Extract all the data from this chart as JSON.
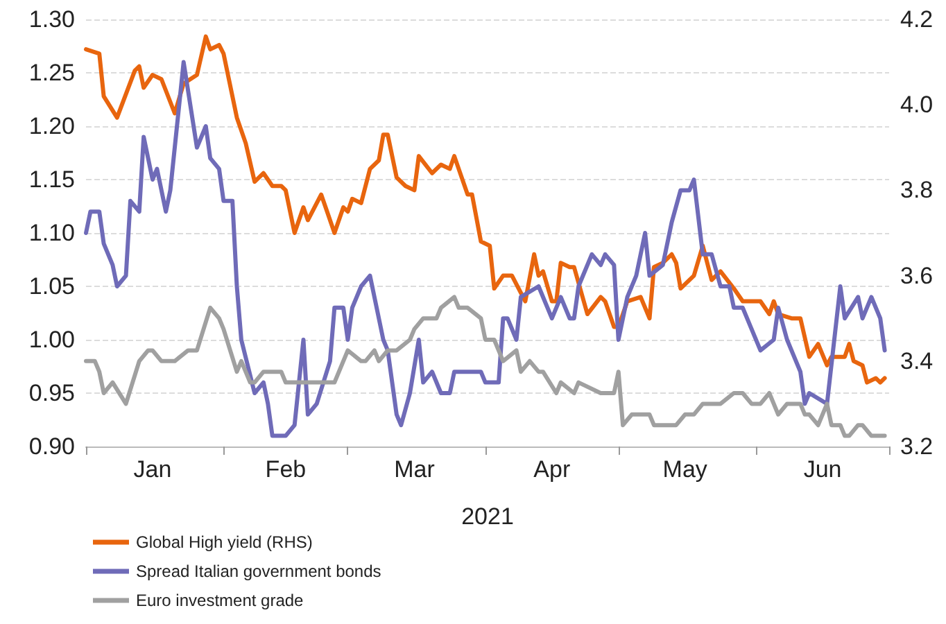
{
  "chart_data": {
    "type": "line",
    "xlabel": "2021",
    "xlim": [
      "2021-01-01",
      "2021-07-01"
    ],
    "xticks": [
      {
        "value": "2021-01-01",
        "label": null
      },
      {
        "value": "2021-01-16",
        "label": "Jan"
      },
      {
        "value": "2021-02-01",
        "label": null
      },
      {
        "value": "2021-02-15",
        "label": "Feb"
      },
      {
        "value": "2021-03-01",
        "label": null
      },
      {
        "value": "2021-03-16",
        "label": "Mar"
      },
      {
        "value": "2021-04-01",
        "label": null
      },
      {
        "value": "2021-04-16",
        "label": "Apr"
      },
      {
        "value": "2021-05-01",
        "label": null
      },
      {
        "value": "2021-05-16",
        "label": "May"
      },
      {
        "value": "2021-06-01",
        "label": null
      },
      {
        "value": "2021-06-16",
        "label": "Jun"
      },
      {
        "value": "2021-07-01",
        "label": null
      }
    ],
    "ylim": [
      0.9,
      1.3
    ],
    "yticks": [
      {
        "value": 0.9,
        "label": "0.90"
      },
      {
        "value": 0.95,
        "label": "0.95"
      },
      {
        "value": 1.0,
        "label": "1.00"
      },
      {
        "value": 1.05,
        "label": "1.05"
      },
      {
        "value": 1.1,
        "label": "1.10"
      },
      {
        "value": 1.15,
        "label": "1.15"
      },
      {
        "value": 1.2,
        "label": "1.20"
      },
      {
        "value": 1.25,
        "label": "1.25"
      },
      {
        "value": 1.3,
        "label": "1.30"
      }
    ],
    "y2lim": [
      3.2,
      4.2
    ],
    "y2ticks": [
      3.2,
      3.4,
      3.6,
      3.8,
      {
        "value": 4.0,
        "label": "4.0"
      },
      4.2
    ],
    "grid": "y",
    "legend": "bottom left",
    "marker": "none",
    "line_style": "solid",
    "series": [
      {
        "name": "Global High yield (RHS)",
        "color": "#e8650e",
        "axis": "y2",
        "x": [
          "2021-01-01",
          "2021-01-04",
          "2021-01-05",
          "2021-01-08",
          "2021-01-12",
          "2021-01-13",
          "2021-01-14",
          "2021-01-16",
          "2021-01-18",
          "2021-01-21",
          "2021-01-23",
          "2021-01-26",
          "2021-01-28",
          "2021-01-29",
          "2021-01-31",
          "2021-02-01",
          "2021-02-04",
          "2021-02-06",
          "2021-02-08",
          "2021-02-10",
          "2021-02-12",
          "2021-02-14",
          "2021-02-15",
          "2021-02-17",
          "2021-02-19",
          "2021-02-20",
          "2021-02-23",
          "2021-02-26",
          "2021-02-28",
          "2021-03-01",
          "2021-03-02",
          "2021-03-04",
          "2021-03-06",
          "2021-03-08",
          "2021-03-09",
          "2021-03-10",
          "2021-03-12",
          "2021-03-14",
          "2021-03-16",
          "2021-03-17",
          "2021-03-20",
          "2021-03-22",
          "2021-03-24",
          "2021-03-25",
          "2021-03-28",
          "2021-03-29",
          "2021-03-31",
          "2021-04-02",
          "2021-04-03",
          "2021-04-05",
          "2021-04-07",
          "2021-04-10",
          "2021-04-12",
          "2021-04-13",
          "2021-04-14",
          "2021-04-16",
          "2021-04-17",
          "2021-04-18",
          "2021-04-20",
          "2021-04-21",
          "2021-04-24",
          "2021-04-27",
          "2021-04-28",
          "2021-04-30",
          "2021-05-01",
          "2021-05-03",
          "2021-05-06",
          "2021-05-08",
          "2021-05-09",
          "2021-05-11",
          "2021-05-13",
          "2021-05-14",
          "2021-05-15",
          "2021-05-18",
          "2021-05-20",
          "2021-05-22",
          "2021-05-24",
          "2021-05-27",
          "2021-05-29",
          "2021-06-02",
          "2021-06-04",
          "2021-06-05",
          "2021-06-06",
          "2021-06-09",
          "2021-06-11",
          "2021-06-13",
          "2021-06-15",
          "2021-06-17",
          "2021-06-18",
          "2021-06-21",
          "2021-06-22",
          "2021-06-23",
          "2021-06-25",
          "2021-06-26",
          "2021-06-28",
          "2021-06-29",
          "2021-06-30"
        ],
        "values": [
          4.13,
          4.12,
          4.02,
          3.97,
          4.08,
          4.09,
          4.04,
          4.07,
          4.06,
          3.98,
          4.05,
          4.07,
          4.16,
          4.13,
          4.14,
          4.12,
          3.97,
          3.91,
          3.82,
          3.84,
          3.81,
          3.81,
          3.8,
          3.7,
          3.76,
          3.73,
          3.79,
          3.7,
          3.76,
          3.75,
          3.78,
          3.77,
          3.85,
          3.87,
          3.93,
          3.93,
          3.83,
          3.81,
          3.8,
          3.88,
          3.84,
          3.86,
          3.85,
          3.88,
          3.79,
          3.79,
          3.68,
          3.67,
          3.57,
          3.6,
          3.6,
          3.54,
          3.65,
          3.6,
          3.61,
          3.54,
          3.54,
          3.63,
          3.62,
          3.62,
          3.51,
          3.55,
          3.54,
          3.48,
          3.48,
          3.54,
          3.55,
          3.5,
          3.62,
          3.63,
          3.65,
          3.63,
          3.57,
          3.6,
          3.67,
          3.59,
          3.61,
          3.57,
          3.54,
          3.54,
          3.51,
          3.54,
          3.51,
          3.5,
          3.5,
          3.41,
          3.44,
          3.39,
          3.41,
          3.41,
          3.44,
          3.4,
          3.39,
          3.35,
          3.36,
          3.35,
          3.36
        ]
      },
      {
        "name": "Spread Italian government bonds",
        "color": "#6f6bb8",
        "x": [
          "2021-01-01",
          "2021-01-02",
          "2021-01-04",
          "2021-01-05",
          "2021-01-07",
          "2021-01-08",
          "2021-01-10",
          "2021-01-11",
          "2021-01-13",
          "2021-01-14",
          "2021-01-16",
          "2021-01-17",
          "2021-01-19",
          "2021-01-20",
          "2021-01-23",
          "2021-01-26",
          "2021-01-28",
          "2021-01-29",
          "2021-01-31",
          "2021-02-01",
          "2021-02-03",
          "2021-02-04",
          "2021-02-05",
          "2021-02-08",
          "2021-02-10",
          "2021-02-11",
          "2021-02-12",
          "2021-02-14",
          "2021-02-15",
          "2021-02-17",
          "2021-02-19",
          "2021-02-20",
          "2021-02-22",
          "2021-02-25",
          "2021-02-26",
          "2021-02-28",
          "2021-03-01",
          "2021-03-02",
          "2021-03-04",
          "2021-03-06",
          "2021-03-09",
          "2021-03-10",
          "2021-03-12",
          "2021-03-13",
          "2021-03-15",
          "2021-03-17",
          "2021-03-18",
          "2021-03-20",
          "2021-03-22",
          "2021-03-24",
          "2021-03-25",
          "2021-03-27",
          "2021-03-31",
          "2021-04-01",
          "2021-04-04",
          "2021-04-05",
          "2021-04-06",
          "2021-04-08",
          "2021-04-09",
          "2021-04-13",
          "2021-04-16",
          "2021-04-18",
          "2021-04-20",
          "2021-04-21",
          "2021-04-22",
          "2021-04-25",
          "2021-04-27",
          "2021-04-28",
          "2021-04-30",
          "2021-05-01",
          "2021-05-03",
          "2021-05-05",
          "2021-05-07",
          "2021-05-08",
          "2021-05-11",
          "2021-05-13",
          "2021-05-15",
          "2021-05-17",
          "2021-05-18",
          "2021-05-20",
          "2021-05-22",
          "2021-05-24",
          "2021-05-26",
          "2021-05-27",
          "2021-05-29",
          "2021-06-02",
          "2021-06-05",
          "2021-06-06",
          "2021-06-08",
          "2021-06-11",
          "2021-06-12",
          "2021-06-13",
          "2021-06-17",
          "2021-06-20",
          "2021-06-21",
          "2021-06-24",
          "2021-06-25",
          "2021-06-27",
          "2021-06-29",
          "2021-06-30"
        ],
        "values": [
          1.1,
          1.12,
          1.12,
          1.09,
          1.07,
          1.05,
          1.06,
          1.13,
          1.12,
          1.19,
          1.15,
          1.16,
          1.12,
          1.14,
          1.26,
          1.18,
          1.2,
          1.17,
          1.16,
          1.13,
          1.13,
          1.05,
          1.0,
          0.95,
          0.96,
          0.94,
          0.91,
          0.91,
          0.91,
          0.92,
          1.0,
          0.93,
          0.94,
          0.98,
          1.03,
          1.03,
          1.0,
          1.03,
          1.05,
          1.06,
          1.0,
          0.99,
          0.93,
          0.92,
          0.95,
          1.0,
          0.96,
          0.97,
          0.95,
          0.95,
          0.97,
          0.97,
          0.97,
          0.96,
          0.96,
          1.02,
          1.02,
          1.0,
          1.04,
          1.05,
          1.02,
          1.04,
          1.02,
          1.02,
          1.05,
          1.08,
          1.07,
          1.08,
          1.07,
          1.0,
          1.04,
          1.06,
          1.1,
          1.06,
          1.07,
          1.11,
          1.14,
          1.14,
          1.15,
          1.08,
          1.08,
          1.05,
          1.05,
          1.03,
          1.03,
          0.99,
          1.0,
          1.03,
          1.0,
          0.97,
          0.94,
          0.95,
          0.94,
          1.05,
          1.02,
          1.04,
          1.02,
          1.04,
          1.02,
          0.99
        ]
      },
      {
        "name": "Euro investment grade",
        "color": "#a0a0a0",
        "x": [
          "2021-01-01",
          "2021-01-03",
          "2021-01-04",
          "2021-01-05",
          "2021-01-07",
          "2021-01-10",
          "2021-01-13",
          "2021-01-15",
          "2021-01-16",
          "2021-01-18",
          "2021-01-19",
          "2021-01-21",
          "2021-01-24",
          "2021-01-26",
          "2021-01-29",
          "2021-01-31",
          "2021-02-01",
          "2021-02-04",
          "2021-02-05",
          "2021-02-07",
          "2021-02-08",
          "2021-02-10",
          "2021-02-11",
          "2021-02-12",
          "2021-02-14",
          "2021-02-15",
          "2021-02-17",
          "2021-02-19",
          "2021-02-20",
          "2021-02-21",
          "2021-02-23",
          "2021-02-26",
          "2021-03-01",
          "2021-03-04",
          "2021-03-05",
          "2021-03-07",
          "2021-03-08",
          "2021-03-10",
          "2021-03-12",
          "2021-03-15",
          "2021-03-16",
          "2021-03-18",
          "2021-03-20",
          "2021-03-21",
          "2021-03-22",
          "2021-03-25",
          "2021-03-26",
          "2021-03-28",
          "2021-03-31",
          "2021-04-01",
          "2021-04-03",
          "2021-04-05",
          "2021-04-08",
          "2021-04-09",
          "2021-04-11",
          "2021-04-13",
          "2021-04-14",
          "2021-04-17",
          "2021-04-18",
          "2021-04-21",
          "2021-04-22",
          "2021-04-27",
          "2021-04-30",
          "2021-05-01",
          "2021-05-02",
          "2021-05-04",
          "2021-05-08",
          "2021-05-09",
          "2021-05-12",
          "2021-05-14",
          "2021-05-16",
          "2021-05-18",
          "2021-05-20",
          "2021-05-22",
          "2021-05-24",
          "2021-05-27",
          "2021-05-29",
          "2021-05-31",
          "2021-06-02",
          "2021-06-04",
          "2021-06-05",
          "2021-06-06",
          "2021-06-08",
          "2021-06-09",
          "2021-06-11",
          "2021-06-12",
          "2021-06-13",
          "2021-06-15",
          "2021-06-17",
          "2021-06-18",
          "2021-06-20",
          "2021-06-21",
          "2021-06-22",
          "2021-06-24",
          "2021-06-25",
          "2021-06-27",
          "2021-06-29",
          "2021-06-30"
        ],
        "values": [
          0.98,
          0.98,
          0.97,
          0.95,
          0.96,
          0.94,
          0.98,
          0.99,
          0.99,
          0.98,
          0.98,
          0.98,
          0.99,
          0.99,
          1.03,
          1.02,
          1.01,
          0.97,
          0.98,
          0.96,
          0.96,
          0.97,
          0.97,
          0.97,
          0.97,
          0.96,
          0.96,
          0.96,
          0.96,
          0.96,
          0.96,
          0.96,
          0.99,
          0.98,
          0.98,
          0.99,
          0.98,
          0.99,
          0.99,
          1.0,
          1.01,
          1.02,
          1.02,
          1.02,
          1.03,
          1.04,
          1.03,
          1.03,
          1.02,
          1.0,
          1.0,
          0.98,
          0.99,
          0.97,
          0.98,
          0.97,
          0.97,
          0.95,
          0.96,
          0.95,
          0.96,
          0.95,
          0.95,
          0.97,
          0.92,
          0.93,
          0.93,
          0.92,
          0.92,
          0.92,
          0.93,
          0.93,
          0.94,
          0.94,
          0.94,
          0.95,
          0.95,
          0.94,
          0.94,
          0.95,
          0.94,
          0.93,
          0.94,
          0.94,
          0.94,
          0.93,
          0.93,
          0.92,
          0.94,
          0.92,
          0.92,
          0.91,
          0.91,
          0.92,
          0.92,
          0.91,
          0.91,
          0.91
        ]
      }
    ]
  }
}
